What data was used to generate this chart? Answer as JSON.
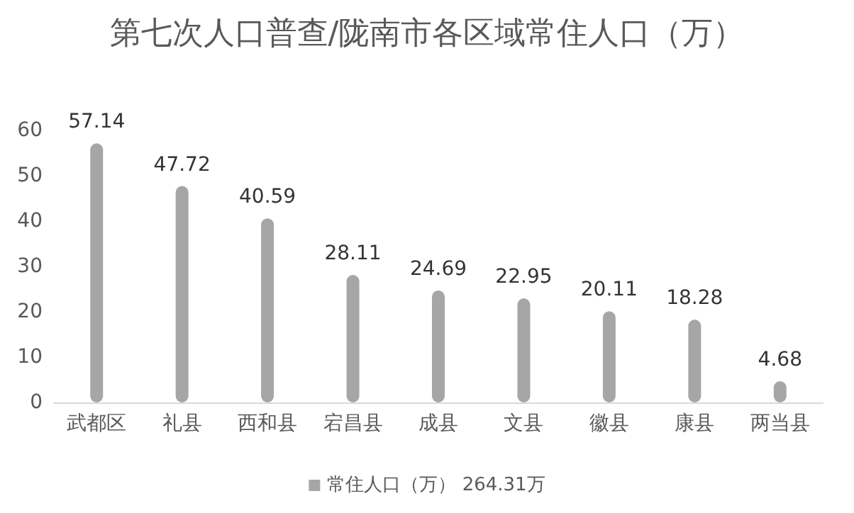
{
  "chart_data": {
    "type": "bar",
    "title": "第七次人口普查/陇南市各区域常住人口（万）",
    "categories": [
      "武都区",
      "礼县",
      "西和县",
      "宕昌县",
      "成县",
      "文县",
      "徽县",
      "康县",
      "两当县"
    ],
    "series": [
      {
        "name": "常住人口（万） 264.31万",
        "color": "#a6a6a6",
        "values": [
          57.14,
          47.72,
          40.59,
          28.11,
          24.69,
          22.95,
          20.11,
          18.28,
          4.68
        ]
      }
    ],
    "ylim": [
      0,
      60
    ],
    "yticks": [
      0,
      10,
      20,
      30,
      40,
      50,
      60
    ],
    "grid": false,
    "legend": "bottom",
    "data_labels": true
  }
}
